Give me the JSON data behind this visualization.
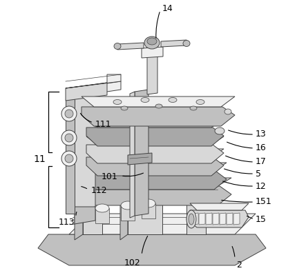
{
  "background_color": "#ffffff",
  "line_color": "#404040",
  "font_size": 9,
  "font_color": "#000000",
  "device_color_light": "#e8e8e8",
  "device_color_mid": "#d0d0d0",
  "device_color_dark": "#b8b8b8",
  "device_color_shadow": "#a0a0a0"
}
